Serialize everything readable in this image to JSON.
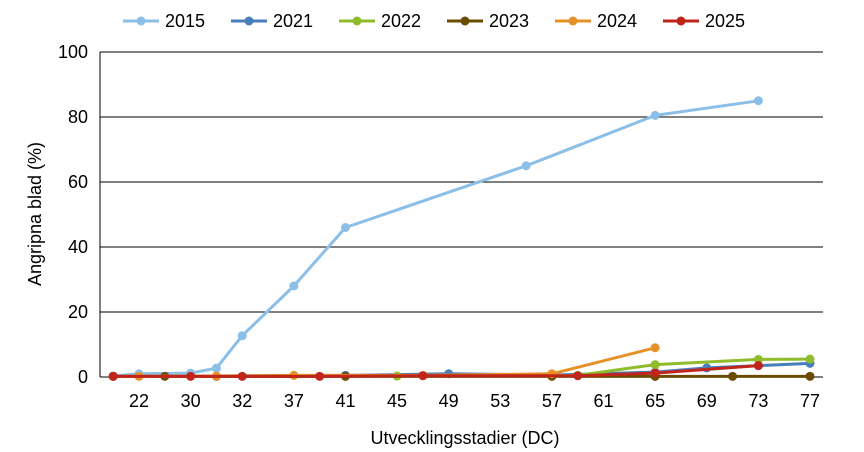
{
  "chart_data": {
    "type": "line",
    "title": "",
    "xlabel": "Utvecklingsstadier (DC)",
    "ylabel": "Angripna blad (%)",
    "ylim": [
      0,
      100
    ],
    "yticks": [
      "0",
      "20",
      "40",
      "60",
      "80",
      "100"
    ],
    "categories": [
      "22",
      "30",
      "32",
      "37",
      "41",
      "45",
      "49",
      "53",
      "57",
      "61",
      "65",
      "69",
      "73",
      "77"
    ],
    "grid": "horizontal",
    "legend_position": "top",
    "series": [
      {
        "name": "2015",
        "color": "#8cbfe8",
        "points": [
          [
            18,
            0.3
          ],
          [
            22,
            1
          ],
          [
            30,
            1.2
          ],
          [
            31,
            2.7
          ],
          [
            32,
            12.7
          ],
          [
            37,
            28
          ],
          [
            41,
            46
          ],
          [
            55,
            65
          ],
          [
            65,
            80.5
          ],
          [
            73,
            85
          ]
        ]
      },
      {
        "name": "2021",
        "color": "#4a7ebb",
        "points": [
          [
            18,
            0.2
          ],
          [
            41,
            0.5
          ],
          [
            49,
            1
          ],
          [
            57,
            0.6
          ],
          [
            65,
            1.5
          ],
          [
            69,
            2.8
          ],
          [
            73,
            3.5
          ],
          [
            77,
            4.2
          ]
        ]
      },
      {
        "name": "2022",
        "color": "#8fbc2b",
        "points": [
          [
            18,
            0.2
          ],
          [
            45,
            0.3
          ],
          [
            59,
            0.5
          ],
          [
            65,
            3.8
          ],
          [
            73,
            5.4
          ],
          [
            77,
            5.5
          ]
        ]
      },
      {
        "name": "2023",
        "color": "#6b4c00",
        "points": [
          [
            18,
            0.2
          ],
          [
            26,
            0.2
          ],
          [
            31,
            0.2
          ],
          [
            41,
            0.2
          ],
          [
            57,
            0.2
          ],
          [
            65,
            0.2
          ],
          [
            71,
            0.2
          ],
          [
            77,
            0.2
          ]
        ]
      },
      {
        "name": "2024",
        "color": "#e59127",
        "points": [
          [
            18,
            0.2
          ],
          [
            22,
            0.2
          ],
          [
            31,
            0.3
          ],
          [
            37,
            0.5
          ],
          [
            47,
            0.5
          ],
          [
            57,
            1
          ],
          [
            65,
            9
          ]
        ]
      },
      {
        "name": "2025",
        "color": "#c0241a",
        "points": [
          [
            18,
            0.2
          ],
          [
            30,
            0.2
          ],
          [
            32,
            0.2
          ],
          [
            39,
            0.2
          ],
          [
            47,
            0.4
          ],
          [
            59,
            0.4
          ],
          [
            65,
            1.2
          ],
          [
            73,
            3.5
          ]
        ]
      }
    ]
  }
}
